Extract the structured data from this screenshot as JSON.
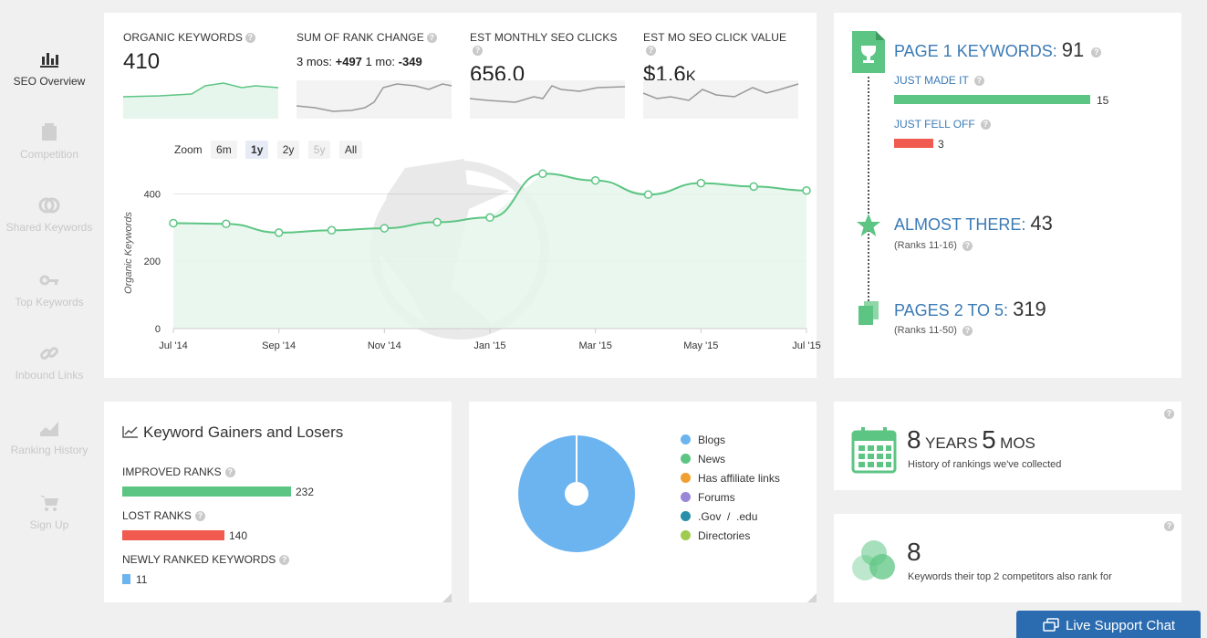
{
  "sidebar": {
    "items": [
      {
        "label": "SEO Overview"
      },
      {
        "label": "Competition"
      },
      {
        "label": "Shared Keywords"
      },
      {
        "label": "Top Keywords"
      },
      {
        "label": "Inbound Links"
      },
      {
        "label": "Ranking History"
      },
      {
        "label": "Sign Up"
      }
    ]
  },
  "metrics": {
    "organic": {
      "label": "ORGANIC KEYWORDS",
      "value": "410"
    },
    "rank_change": {
      "label": "SUM OF RANK CHANGE",
      "prefix3": "3 mos: ",
      "val3": "+497",
      "prefix1": " 1 mo: ",
      "val1": "-349"
    },
    "clicks": {
      "label": "EST MONTHLY SEO CLICKS",
      "value": "656.0"
    },
    "click_value": {
      "label": "EST MO SEO CLICK VALUE",
      "value": "$1.6",
      "suffix": "K"
    }
  },
  "zoom": {
    "label": "Zoom",
    "options": [
      "6m",
      "1y",
      "2y",
      "5y",
      "All"
    ]
  },
  "chart_data": {
    "type": "area",
    "ylabel": "Organic Keywords",
    "ylim": [
      0,
      450
    ],
    "yticks": [
      "0",
      "200",
      "400"
    ],
    "xticks": [
      "Jul '14",
      "Sep '14",
      "Nov '14",
      "Jan '15",
      "Mar '15",
      "May '15",
      "Jul '15"
    ],
    "x": [
      "Jul '14",
      "Aug '14",
      "Sep '14",
      "Oct '14",
      "Nov '14",
      "Dec '14",
      "Jan '15",
      "Feb '15",
      "Mar '15",
      "Apr '15",
      "May '15",
      "Jun '15",
      "Jul '15"
    ],
    "values": [
      313,
      311,
      285,
      292,
      298,
      316,
      330,
      460,
      440,
      398,
      432,
      422,
      410
    ],
    "colors": {
      "line": "#5dc583",
      "fill": "#e6f6ec"
    }
  },
  "page1": {
    "title": "PAGE 1 KEYWORDS:",
    "value": "91",
    "just_made_label": "JUST MADE IT",
    "just_made_value": "15",
    "just_fell_label": "JUST FELL OFF",
    "just_fell_value": "3"
  },
  "almost": {
    "title": "ALMOST THERE:",
    "value": "43",
    "note": "(Ranks 11-16)"
  },
  "pages25": {
    "title": "PAGES 2 TO 5:",
    "value": "319",
    "note": "(Ranks 11-50)"
  },
  "gainers": {
    "title": "Keyword Gainers and Losers",
    "improved_label": "IMPROVED RANKS",
    "improved_value": "232",
    "lost_label": "LOST RANKS",
    "lost_value": "140",
    "new_label": "NEWLY RANKED KEYWORDS",
    "new_value": "11"
  },
  "pie": {
    "legend": [
      {
        "label": "Blogs",
        "color": "#6cb4f0"
      },
      {
        "label": "News",
        "color": "#5dc583"
      },
      {
        "label": "Has affiliate links",
        "color": "#f0a030"
      },
      {
        "label": "Forums",
        "color": "#9b87d8"
      },
      {
        "label": ".Gov  /  .edu",
        "color": "#2a8fa8"
      },
      {
        "label": "Directories",
        "color": "#9fcc4f"
      }
    ]
  },
  "history": {
    "years": "8",
    "years_unit": "YEARS",
    "mos": "5",
    "mos_unit": "MOS",
    "note": "History of rankings we've collected"
  },
  "competitors": {
    "value": "8",
    "note": "Keywords their top 2 competitors also rank for"
  },
  "chat": {
    "label": "Live Support Chat"
  },
  "colors": {
    "green": "#5dc583",
    "red": "#f05a4f",
    "blue": "#6cb4f0",
    "link": "#3a7ab6"
  }
}
